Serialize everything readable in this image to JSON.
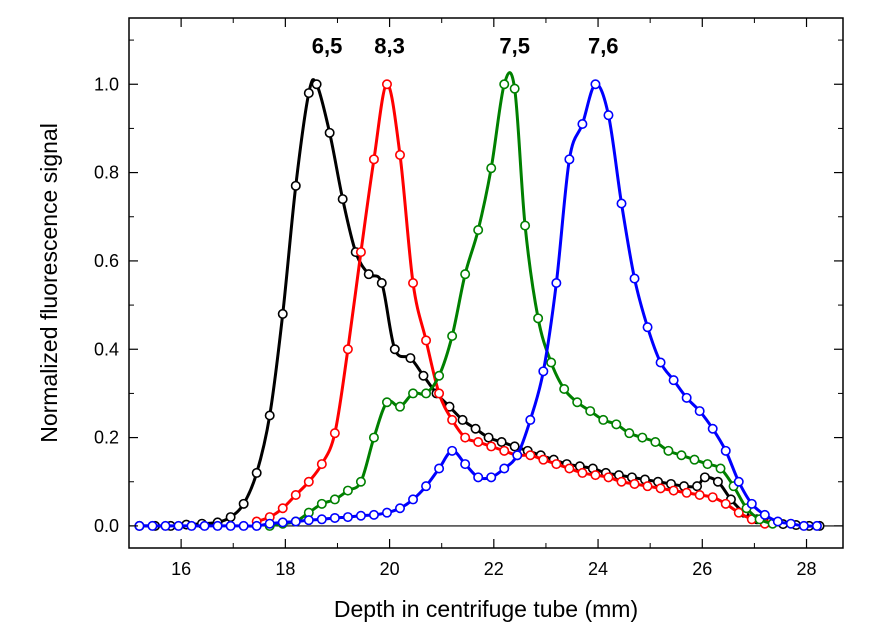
{
  "chart_data": {
    "type": "line",
    "title": "",
    "xlabel": "Depth in centrifuge tube  (mm)",
    "ylabel": "Normalized fluorescence signal",
    "xlim": [
      15,
      28.7
    ],
    "ylim": [
      -0.05,
      1.15
    ],
    "xticks": [
      16,
      18,
      20,
      22,
      24,
      26,
      28
    ],
    "xtick_labels": [
      "16",
      "18",
      "20",
      "22",
      "24",
      "26",
      "28"
    ],
    "yticks": [
      0.0,
      0.2,
      0.4,
      0.6,
      0.8,
      1.0
    ],
    "ytick_labels": [
      "0.0",
      "0.2",
      "0.4",
      "0.6",
      "0.8",
      "1.0"
    ],
    "grid": false,
    "legend": "none",
    "baseline": 0,
    "annotations": [
      {
        "text": "6,5",
        "x": 18.8,
        "y": 1.07,
        "color": "#000000"
      },
      {
        "text": "8,3",
        "x": 20.0,
        "y": 1.07,
        "color": "#000000"
      },
      {
        "text": "7,5",
        "x": 22.4,
        "y": 1.07,
        "color": "#000000"
      },
      {
        "text": "7,6",
        "x": 24.1,
        "y": 1.07,
        "color": "#000000"
      }
    ],
    "series": [
      {
        "color": "#000000",
        "x": [
          15.2,
          15.5,
          15.8,
          16.1,
          16.4,
          16.7,
          16.95,
          17.2,
          17.45,
          17.7,
          17.95,
          18.2,
          18.45,
          18.6,
          18.85,
          19.1,
          19.35,
          19.6,
          19.85,
          20.1,
          20.4,
          20.65,
          20.9,
          21.15,
          21.4,
          21.65,
          21.9,
          22.15,
          22.4,
          22.65,
          22.9,
          23.15,
          23.4,
          23.65,
          23.9,
          24.15,
          24.4,
          24.65,
          24.9,
          25.15,
          25.4,
          25.65,
          25.9,
          26.05,
          26.3,
          26.55,
          26.8,
          27.05,
          27.3,
          27.55,
          27.8,
          28.05,
          28.25
        ],
        "y": [
          0.0,
          0.0,
          0.0,
          0.003,
          0.005,
          0.008,
          0.02,
          0.05,
          0.12,
          0.25,
          0.48,
          0.77,
          0.98,
          1.0,
          0.89,
          0.74,
          0.62,
          0.57,
          0.55,
          0.4,
          0.38,
          0.34,
          0.3,
          0.27,
          0.24,
          0.22,
          0.2,
          0.19,
          0.18,
          0.17,
          0.16,
          0.15,
          0.14,
          0.135,
          0.13,
          0.12,
          0.115,
          0.11,
          0.105,
          0.1,
          0.095,
          0.09,
          0.09,
          0.11,
          0.1,
          0.06,
          0.03,
          0.015,
          0.008,
          0.004,
          0.002,
          0.0,
          0.0
        ]
      },
      {
        "color": "#ff0000",
        "x": [
          17.45,
          17.7,
          17.95,
          18.2,
          18.45,
          18.7,
          18.95,
          19.2,
          19.45,
          19.7,
          19.95,
          20.2,
          20.45,
          20.7,
          20.95,
          21.2,
          21.45,
          21.7,
          21.95,
          22.2,
          22.45,
          22.7,
          22.95,
          23.2,
          23.45,
          23.7,
          23.95,
          24.2,
          24.45,
          24.7,
          24.95,
          25.2,
          25.45,
          25.7,
          25.95,
          26.2,
          26.45,
          26.7,
          26.95,
          27.2
        ],
        "y": [
          0.01,
          0.02,
          0.04,
          0.07,
          0.1,
          0.14,
          0.21,
          0.4,
          0.62,
          0.83,
          1.0,
          0.84,
          0.55,
          0.42,
          0.3,
          0.24,
          0.2,
          0.19,
          0.18,
          0.17,
          0.16,
          0.16,
          0.15,
          0.14,
          0.13,
          0.12,
          0.115,
          0.11,
          0.1,
          0.095,
          0.09,
          0.085,
          0.08,
          0.075,
          0.07,
          0.065,
          0.05,
          0.03,
          0.015,
          0.005
        ]
      },
      {
        "color": "#008000",
        "x": [
          17.7,
          17.95,
          18.2,
          18.45,
          18.7,
          18.95,
          19.2,
          19.45,
          19.7,
          19.95,
          20.2,
          20.45,
          20.7,
          20.95,
          21.2,
          21.45,
          21.7,
          21.95,
          22.2,
          22.4,
          22.6,
          22.85,
          23.1,
          23.35,
          23.6,
          23.85,
          24.1,
          24.35,
          24.6,
          24.85,
          25.1,
          25.35,
          25.6,
          25.85,
          26.1,
          26.35,
          26.6,
          26.85,
          27.1,
          27.35
        ],
        "y": [
          0.0,
          0.005,
          0.01,
          0.03,
          0.05,
          0.06,
          0.08,
          0.1,
          0.2,
          0.28,
          0.27,
          0.3,
          0.3,
          0.34,
          0.43,
          0.57,
          0.67,
          0.81,
          1.0,
          0.99,
          0.68,
          0.47,
          0.37,
          0.31,
          0.28,
          0.26,
          0.24,
          0.23,
          0.21,
          0.2,
          0.19,
          0.17,
          0.16,
          0.15,
          0.14,
          0.13,
          0.09,
          0.04,
          0.015,
          0.005
        ]
      },
      {
        "color": "#0000ff",
        "x": [
          15.2,
          15.45,
          15.7,
          15.95,
          16.2,
          16.45,
          16.7,
          16.95,
          17.2,
          17.45,
          17.7,
          17.95,
          18.2,
          18.45,
          18.7,
          18.95,
          19.2,
          19.45,
          19.7,
          19.95,
          20.2,
          20.45,
          20.7,
          20.95,
          21.2,
          21.45,
          21.7,
          21.95,
          22.2,
          22.45,
          22.7,
          22.95,
          23.2,
          23.45,
          23.7,
          23.95,
          24.2,
          24.45,
          24.7,
          24.95,
          25.2,
          25.45,
          25.7,
          25.95,
          26.2,
          26.45,
          26.7,
          26.95,
          27.2,
          27.45,
          27.7,
          27.95,
          28.2
        ],
        "y": [
          0.0,
          0.0,
          0.0,
          0.0,
          0.0,
          0.0,
          0.0,
          0.0,
          0.0,
          0.0,
          0.005,
          0.008,
          0.01,
          0.013,
          0.015,
          0.018,
          0.02,
          0.023,
          0.025,
          0.03,
          0.04,
          0.06,
          0.09,
          0.13,
          0.17,
          0.14,
          0.11,
          0.11,
          0.13,
          0.16,
          0.24,
          0.35,
          0.55,
          0.83,
          0.91,
          1.0,
          0.93,
          0.73,
          0.56,
          0.45,
          0.37,
          0.33,
          0.29,
          0.26,
          0.22,
          0.17,
          0.1,
          0.05,
          0.025,
          0.01,
          0.005,
          0.0,
          0.0
        ]
      }
    ]
  }
}
